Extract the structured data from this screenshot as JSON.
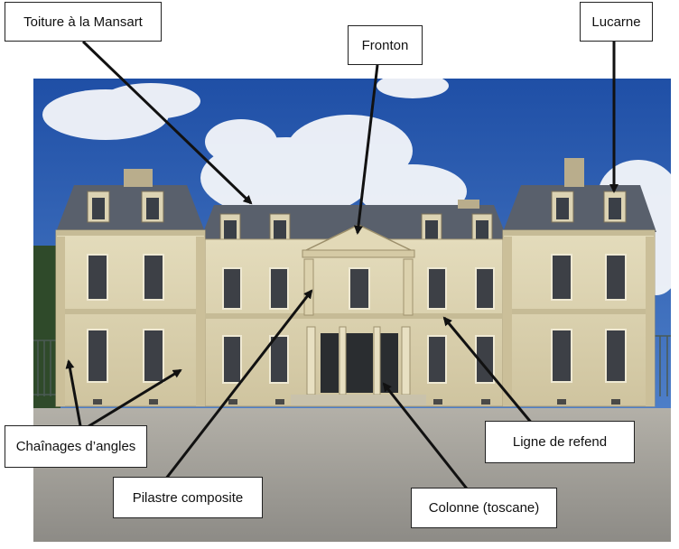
{
  "labels": {
    "toiture": "Toiture à la Mansart",
    "fronton": "Fronton",
    "lucarne": "Lucarne",
    "chainages": "Chaînages d’angles",
    "ligne_refend": "Ligne de refend",
    "pilastre": "Pilastre composite",
    "colonne": "Colonne (toscane)"
  },
  "colors": {
    "sky": "#2f63b8",
    "roof": "#5a6270",
    "stone": "#d9cfad",
    "ground": "#9a9892",
    "arrow": "#111111"
  }
}
